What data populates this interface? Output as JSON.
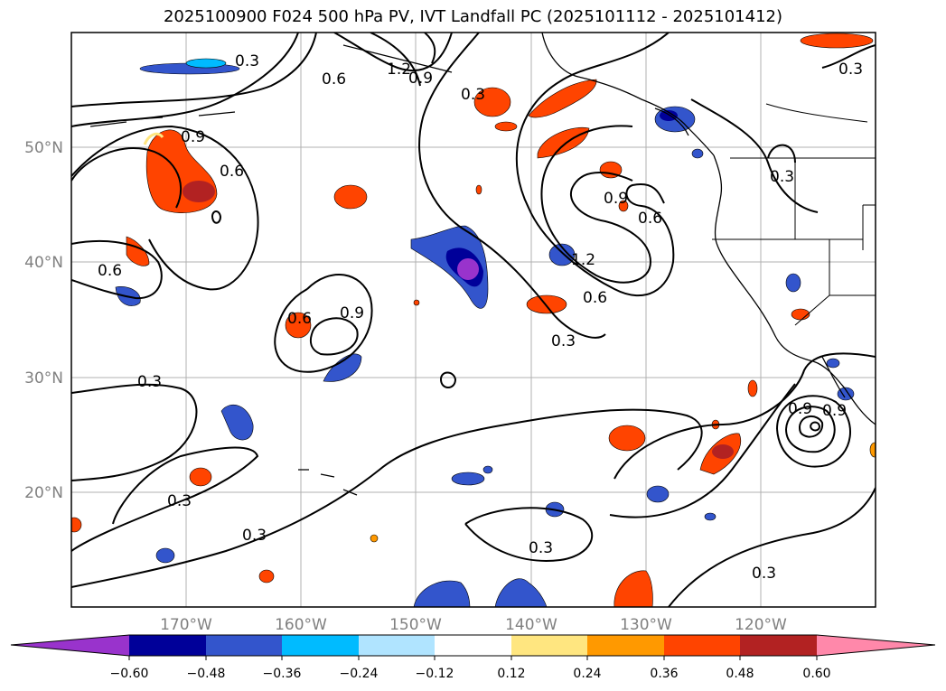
{
  "title": "2025100900 F024 500 hPa PV, IVT Landfall PC (2025101112 - 2025101412)",
  "lat_labels": [
    "50°N",
    "40°N",
    "30°N",
    "20°N"
  ],
  "lon_labels": [
    "170°W",
    "160°W",
    "150°W",
    "140°W",
    "130°W",
    "120°W"
  ],
  "contour_labels": {
    "a": "0.3",
    "b": "0.6",
    "c": "1.2",
    "d": "0.9",
    "e": "0.3",
    "f": "0.3",
    "g": "0.9",
    "h": "0.6",
    "i": "0.3",
    "j": "0.9",
    "k": "0.6",
    "l": "1.2",
    "m": "0.6",
    "n": "0.6",
    "o": "0.6",
    "p": "0.9",
    "q": "0.3",
    "r": "0.3",
    "s": "0.3",
    "t": "0.3",
    "u": "0.3",
    "v": "0.9",
    "w": "0.9",
    "x": "0.3"
  },
  "colorbar": {
    "ticks": [
      "−0.60",
      "−0.48",
      "−0.36",
      "−0.24",
      "−0.12",
      "0.12",
      "0.24",
      "0.36",
      "0.48",
      "0.60"
    ],
    "colors": [
      "#9933cc",
      "#000099",
      "#3355cc",
      "#00bbff",
      "#b0e4ff",
      "#ffffff",
      "#ffe680",
      "#ff9900",
      "#ff4400",
      "#b22222",
      "#ff88aa"
    ]
  }
}
